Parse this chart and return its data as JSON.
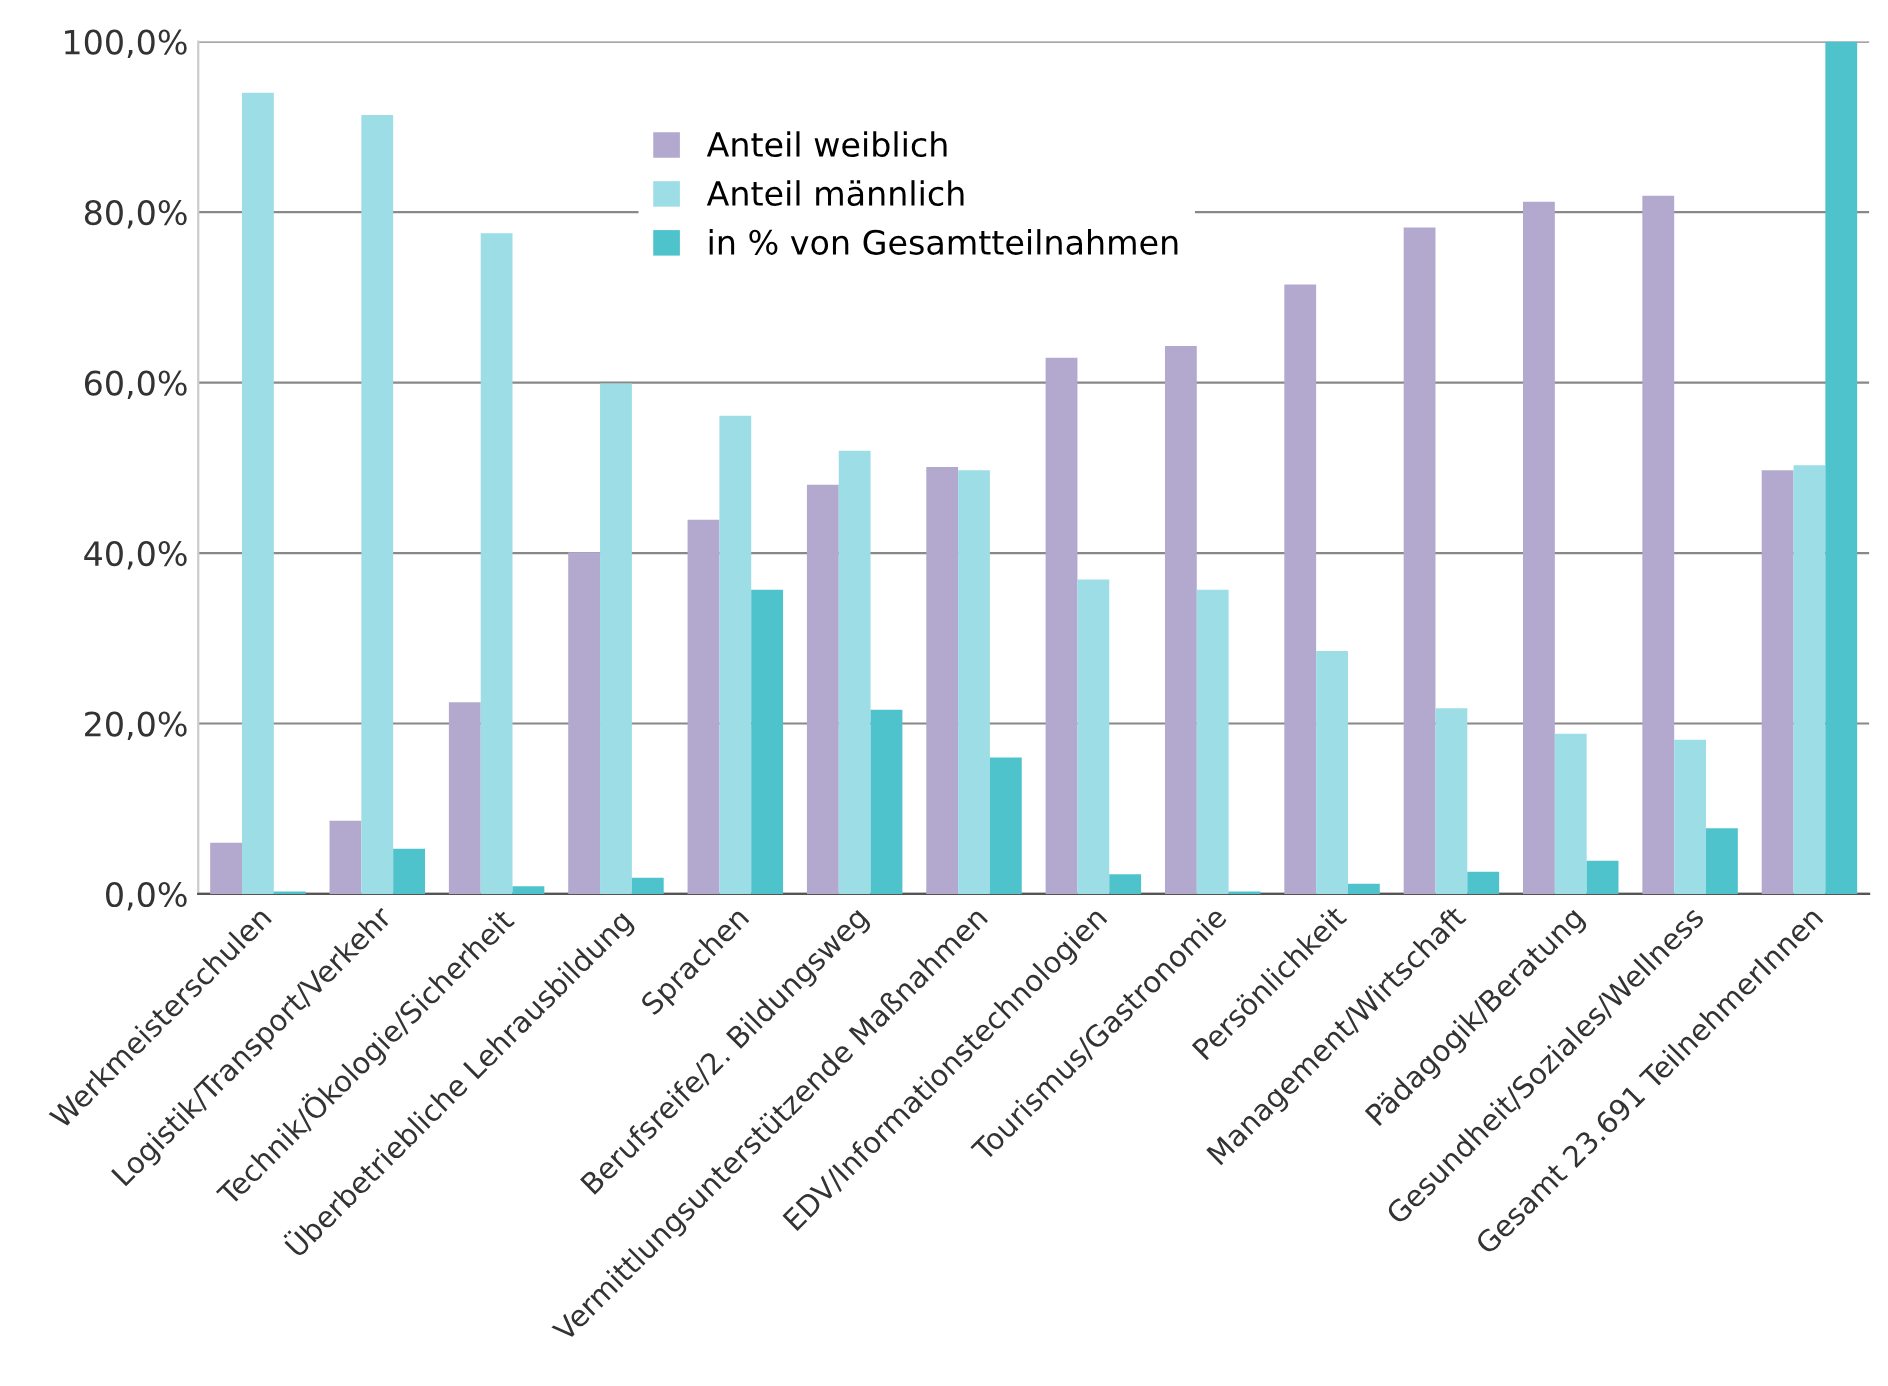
{
  "chart_data": {
    "type": "bar",
    "categories": [
      "Werkmeisterschulen",
      "Logistik/Transport/Verkehr",
      "Technik/Ökologie/Sicherheit",
      "Überbetriebliche Lehrausbildung",
      "Sprachen",
      "Berufsreife/2. Bildungsweg",
      "Vermittlungsunterstützende Maßnahmen",
      "EDV/Informationstechnologien",
      "Tourismus/Gastronomie",
      "Persönlichkeit",
      "Management/Wirtschaft",
      "Pädagogik/Beratung",
      "Gesundheit/Soziales/Wellness",
      "Gesamt 23.691 TeilnehmerInnen"
    ],
    "series": [
      {
        "name": "Anteil weiblich",
        "color": "#b3a9cf",
        "values": [
          6.0,
          8.6,
          22.5,
          40.1,
          43.9,
          48.0,
          50.1,
          62.9,
          64.3,
          71.5,
          78.2,
          81.2,
          81.9,
          49.7
        ]
      },
      {
        "name": "Anteil männlich",
        "color": "#9ddde6",
        "values": [
          94.0,
          91.4,
          77.5,
          59.9,
          56.1,
          52.0,
          49.7,
          36.9,
          35.7,
          28.5,
          21.8,
          18.8,
          18.1,
          50.3
        ]
      },
      {
        "name": "in % von Gesamtteilnahmen",
        "color": "#4fc3cc",
        "values": [
          0.3,
          5.3,
          0.9,
          1.9,
          35.7,
          21.6,
          16.0,
          2.3,
          0.3,
          1.2,
          2.6,
          3.9,
          7.7,
          100
        ]
      }
    ],
    "ylim": [
      0,
      100
    ],
    "yticks": [
      {
        "value": 0,
        "label": "0,0%"
      },
      {
        "value": 20,
        "label": "20,0%"
      },
      {
        "value": 40,
        "label": "40,0%"
      },
      {
        "value": 60,
        "label": "60,0%"
      },
      {
        "value": 80,
        "label": "80,0%"
      },
      {
        "value": 100,
        "label": "100,0%"
      }
    ],
    "grid": "y",
    "legend": "top"
  }
}
